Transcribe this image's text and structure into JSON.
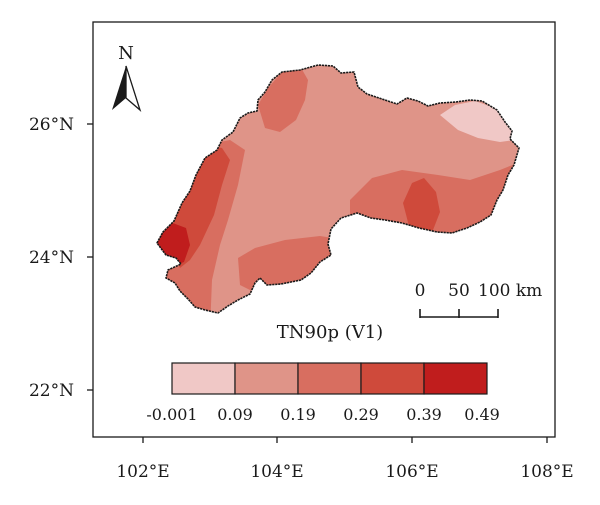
{
  "map": {
    "variable_title": "TN90p (V1)",
    "fill_colors": {
      "class_1": "#f0c8c6",
      "class_2": "#df9488",
      "class_3": "#d86e60",
      "class_4": "#cf4a3b",
      "class_5": "#c01d1d",
      "outline": "#1a1a1a"
    }
  },
  "axes": {
    "x_ticks": [
      "102°E",
      "104°E",
      "106°E",
      "108°E"
    ],
    "y_ticks": [
      "26°N",
      "24°N",
      "22°N"
    ]
  },
  "north_arrow": {
    "label": "N"
  },
  "scale_bar": {
    "labels": [
      "0",
      "50",
      "100 km"
    ]
  },
  "legend": {
    "colors": [
      "#f0c8c6",
      "#df9488",
      "#d86e60",
      "#cf4a3b",
      "#c01d1d"
    ],
    "break_labels": [
      "-0.001",
      "0.09",
      "0.19",
      "0.29",
      "0.39",
      "0.49"
    ]
  }
}
